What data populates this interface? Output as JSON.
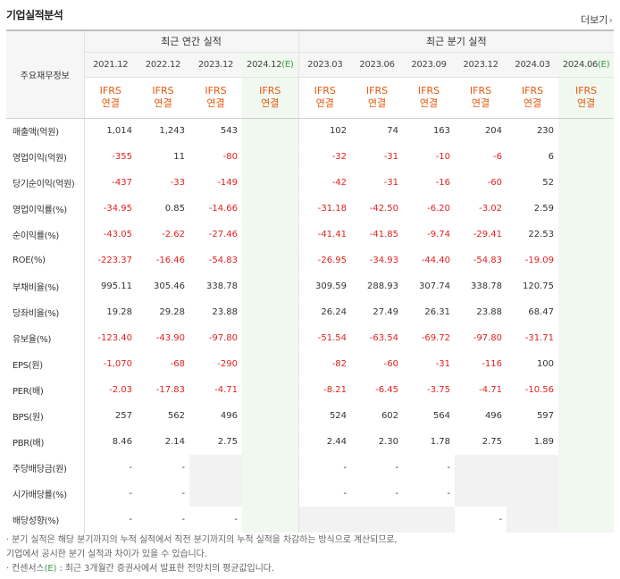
{
  "section_title": "기업실적분석",
  "more_label": "더보기",
  "more_arrow": "›",
  "header": {
    "corner_label": "주요재무정보",
    "group_annual": "최근 연간 실적",
    "group_quarter": "최근 분기 실적",
    "annual_periods": [
      "2021.12",
      "2022.12",
      "2023.12",
      "2024.12"
    ],
    "quarter_periods": [
      "2023.03",
      "2023.06",
      "2023.09",
      "2023.12",
      "2024.03",
      "2024.06"
    ],
    "estimate_mark": "(E)",
    "ifrs_line1": "IFRS",
    "ifrs_line2": "연결"
  },
  "rows": [
    {
      "label": "매출액(억원)",
      "annual": [
        "1,014",
        "1,243",
        "543",
        ""
      ],
      "quarter": [
        "102",
        "74",
        "163",
        "204",
        "230",
        ""
      ]
    },
    {
      "label": "영업이익(억원)",
      "annual": [
        "-355",
        "11",
        "-80",
        ""
      ],
      "quarter": [
        "-32",
        "-31",
        "-10",
        "-6",
        "6",
        ""
      ]
    },
    {
      "label": "당기순이익(억원)",
      "annual": [
        "-437",
        "-33",
        "-149",
        ""
      ],
      "quarter": [
        "-42",
        "-31",
        "-16",
        "-60",
        "52",
        ""
      ]
    },
    {
      "label": "영업이익률(%)",
      "annual": [
        "-34.95",
        "0.85",
        "-14.66",
        ""
      ],
      "quarter": [
        "-31.18",
        "-42.50",
        "-6.20",
        "-3.02",
        "2.59",
        ""
      ]
    },
    {
      "label": "순이익률(%)",
      "annual": [
        "-43.05",
        "-2.62",
        "-27.46",
        ""
      ],
      "quarter": [
        "-41.41",
        "-41.85",
        "-9.74",
        "-29.41",
        "22.53",
        ""
      ]
    },
    {
      "label": "ROE(%)",
      "annual": [
        "-223.37",
        "-16.46",
        "-54.83",
        ""
      ],
      "quarter": [
        "-26.95",
        "-34.93",
        "-44.40",
        "-54.83",
        "-19.09",
        ""
      ]
    },
    {
      "label": "부채비율(%)",
      "annual": [
        "995.11",
        "305.46",
        "338.78",
        ""
      ],
      "quarter": [
        "309.59",
        "288.93",
        "307.74",
        "338.78",
        "120.75",
        ""
      ]
    },
    {
      "label": "당좌비율(%)",
      "annual": [
        "19.28",
        "29.28",
        "23.88",
        ""
      ],
      "quarter": [
        "26.24",
        "27.49",
        "26.31",
        "23.88",
        "68.47",
        ""
      ]
    },
    {
      "label": "유보율(%)",
      "annual": [
        "-123.40",
        "-43.90",
        "-97.80",
        ""
      ],
      "quarter": [
        "-51.54",
        "-63.54",
        "-69.72",
        "-97.80",
        "-31.71",
        ""
      ]
    },
    {
      "label": "EPS(원)",
      "annual": [
        "-1,070",
        "-68",
        "-290",
        ""
      ],
      "quarter": [
        "-82",
        "-60",
        "-31",
        "-116",
        "100",
        ""
      ]
    },
    {
      "label": "PER(배)",
      "annual": [
        "-2.03",
        "-17.83",
        "-4.71",
        ""
      ],
      "quarter": [
        "-8.21",
        "-6.45",
        "-3.75",
        "-4.71",
        "-10.56",
        ""
      ]
    },
    {
      "label": "BPS(원)",
      "annual": [
        "257",
        "562",
        "496",
        ""
      ],
      "quarter": [
        "524",
        "602",
        "564",
        "496",
        "597",
        ""
      ]
    },
    {
      "label": "PBR(배)",
      "annual": [
        "8.46",
        "2.14",
        "2.75",
        ""
      ],
      "quarter": [
        "2.44",
        "2.30",
        "1.78",
        "2.75",
        "1.89",
        ""
      ]
    },
    {
      "label": "주당배당금(원)",
      "annual": [
        "-",
        "-",
        "",
        ""
      ],
      "quarter": [
        "-",
        "-",
        "-",
        "",
        "",
        ""
      ]
    },
    {
      "label": "시가배당률(%)",
      "annual": [
        "-",
        "-",
        "",
        ""
      ],
      "quarter": [
        "-",
        "-",
        "-",
        "",
        "",
        ""
      ]
    },
    {
      "label": "배당성향(%)",
      "annual": [
        "-",
        "-",
        "-",
        ""
      ],
      "quarter": [
        "",
        "",
        "",
        "-",
        "",
        ""
      ]
    }
  ],
  "notes": {
    "line1": "· 분기 실적은 해당 분기까지의 누적 실적에서 직전 분기까지의 누적 실적을 차감하는 방식으로 계산되므로,",
    "line2": "  기업에서 공시한 분기 실적과 차이가 있을 수 있습니다.",
    "line3_pre": "· 컨센서스",
    "line3_mark": "(E)",
    "line3_post": " : 최근 3개월간 증권사에서 발표한 전망치의 평균값입니다."
  }
}
